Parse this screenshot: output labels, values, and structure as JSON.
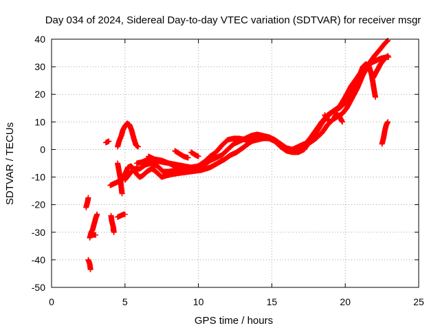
{
  "chart_data": {
    "type": "scatter",
    "title": "Day 034 of 2024, Sidereal Day-to-day VTEC variation (SDTVAR) for receiver msgr",
    "xlabel": "GPS time / hours",
    "ylabel": "SDTVAR / TECUs",
    "xlim": [
      0,
      25
    ],
    "ylim": [
      -50,
      40
    ],
    "xticks": [
      "0",
      "5",
      "10",
      "15",
      "20",
      "25"
    ],
    "yticks": [
      "-50",
      "-40",
      "-30",
      "-20",
      "-10",
      "0",
      "10",
      "20",
      "30",
      "40"
    ],
    "grid": true,
    "marker": "plus",
    "color": "#ff0000",
    "series": [
      {
        "segments": [
          [
            [
              2.35,
              -21
            ],
            [
              2.45,
              -19
            ],
            [
              2.5,
              -17.5
            ]
          ],
          [
            [
              2.5,
              -40
            ],
            [
              2.6,
              -41.5
            ],
            [
              2.65,
              -43.5
            ]
          ],
          [
            [
              2.6,
              -32
            ],
            [
              2.7,
              -30
            ],
            [
              2.8,
              -29
            ],
            [
              2.9,
              -27
            ],
            [
              3.0,
              -25
            ],
            [
              3.1,
              -23.5
            ]
          ],
          [
            [
              2.8,
              -31
            ],
            [
              3.0,
              -31
            ]
          ],
          [
            [
              3.7,
              2.5
            ],
            [
              3.9,
              3
            ]
          ],
          [
            [
              4.0,
              -13
            ],
            [
              4.2,
              -12.5
            ],
            [
              4.4,
              -12
            ],
            [
              4.6,
              -11.5
            ]
          ],
          [
            [
              4.05,
              -24
            ],
            [
              4.1,
              -26
            ],
            [
              4.2,
              -28
            ],
            [
              4.25,
              -30
            ],
            [
              4.2,
              -29
            ]
          ],
          [
            [
              4.5,
              -5
            ],
            [
              4.6,
              -8
            ],
            [
              4.7,
              -11
            ],
            [
              4.75,
              -14
            ],
            [
              4.8,
              -16
            ]
          ],
          [
            [
              4.5,
              -24.5
            ],
            [
              4.7,
              -24
            ],
            [
              4.9,
              -23.5
            ],
            [
              5.0,
              -23.5
            ]
          ],
          [
            [
              4.5,
              1
            ],
            [
              4.6,
              3
            ],
            [
              4.75,
              5
            ],
            [
              4.85,
              7
            ],
            [
              5.0,
              8.5
            ],
            [
              5.15,
              9.5
            ],
            [
              5.3,
              9
            ],
            [
              5.45,
              7
            ],
            [
              5.6,
              4
            ],
            [
              5.75,
              1.5
            ],
            [
              5.9,
              1
            ]
          ],
          [
            [
              4.6,
              -12
            ],
            [
              4.8,
              -11
            ],
            [
              5.0,
              -9
            ],
            [
              5.2,
              -6.5
            ],
            [
              5.4,
              -6
            ],
            [
              5.6,
              -7
            ],
            [
              5.8,
              -9
            ],
            [
              6.0,
              -10
            ],
            [
              6.2,
              -9.5
            ],
            [
              6.5,
              -8
            ],
            [
              6.8,
              -7
            ],
            [
              7.0,
              -7.5
            ],
            [
              7.3,
              -9
            ],
            [
              7.5,
              -10
            ],
            [
              7.8,
              -9.5
            ],
            [
              8.2,
              -9
            ],
            [
              8.8,
              -8.5
            ],
            [
              9.5,
              -8
            ],
            [
              10.2,
              -7.5
            ],
            [
              10.8,
              -6.5
            ],
            [
              11.3,
              -5
            ],
            [
              11.8,
              -3.5
            ],
            [
              12.2,
              -2
            ],
            [
              12.6,
              -1
            ],
            [
              13.0,
              0.5
            ],
            [
              13.5,
              2.5
            ],
            [
              14.0,
              4
            ],
            [
              14.5,
              4.5
            ],
            [
              15.0,
              4
            ],
            [
              15.5,
              2
            ],
            [
              16.0,
              0
            ],
            [
              16.4,
              -1
            ],
            [
              16.8,
              -1
            ],
            [
              17.2,
              0
            ],
            [
              17.6,
              3
            ],
            [
              18.0,
              6
            ],
            [
              18.4,
              9.5
            ],
            [
              18.8,
              12
            ],
            [
              19.2,
              14
            ],
            [
              19.6,
              15
            ],
            [
              20.0,
              17
            ],
            [
              20.3,
              19
            ],
            [
              20.6,
              22
            ],
            [
              20.9,
              26
            ],
            [
              21.2,
              30
            ],
            [
              21.4,
              31
            ],
            [
              21.6,
              30.5
            ],
            [
              21.8,
              27
            ],
            [
              21.95,
              22
            ],
            [
              22.05,
              19
            ]
          ],
          [
            [
              5.0,
              -11
            ],
            [
              5.3,
              -9
            ],
            [
              5.6,
              -7
            ],
            [
              6.0,
              -7
            ],
            [
              6.4,
              -5.5
            ],
            [
              6.8,
              -5
            ],
            [
              7.2,
              -6
            ],
            [
              7.6,
              -8
            ],
            [
              8.0,
              -8
            ],
            [
              8.5,
              -7.5
            ],
            [
              9.0,
              -7
            ],
            [
              9.5,
              -6.5
            ],
            [
              10.0,
              -6
            ],
            [
              10.4,
              -4.5
            ],
            [
              10.8,
              -2.5
            ],
            [
              11.2,
              -1
            ],
            [
              11.6,
              1.5
            ],
            [
              12.0,
              3.5
            ],
            [
              12.4,
              4
            ],
            [
              12.8,
              4
            ],
            [
              13.2,
              3.5
            ],
            [
              13.6,
              3
            ],
            [
              14.0,
              3.5
            ],
            [
              14.4,
              4
            ],
            [
              14.8,
              4
            ],
            [
              15.2,
              3
            ],
            [
              15.6,
              1
            ],
            [
              16.0,
              -0.5
            ],
            [
              16.4,
              -1
            ],
            [
              16.8,
              -0.5
            ],
            [
              17.2,
              1.5
            ],
            [
              17.6,
              4
            ],
            [
              18.0,
              7
            ],
            [
              18.4,
              10
            ],
            [
              18.8,
              12.5
            ],
            [
              19.2,
              14
            ],
            [
              19.6,
              15.5
            ],
            [
              20.0,
              19
            ],
            [
              20.4,
              23
            ],
            [
              20.8,
              26
            ],
            [
              21.2,
              29
            ],
            [
              21.6,
              31
            ],
            [
              22.0,
              32
            ],
            [
              22.4,
              33
            ],
            [
              22.8,
              33.5
            ],
            [
              22.95,
              33.5
            ]
          ],
          [
            [
              5.8,
              -5
            ],
            [
              6.2,
              -4.5
            ],
            [
              6.6,
              -3.5
            ],
            [
              7.0,
              -4
            ],
            [
              7.5,
              -4.5
            ],
            [
              8.0,
              -5
            ],
            [
              8.5,
              -5.5
            ],
            [
              9.0,
              -6
            ],
            [
              9.5,
              -6.5
            ],
            [
              10.0,
              -7
            ],
            [
              10.4,
              -5.5
            ],
            [
              10.8,
              -4
            ],
            [
              11.2,
              -3
            ],
            [
              11.6,
              -2
            ],
            [
              12.0,
              0
            ],
            [
              12.4,
              2
            ],
            [
              12.8,
              3
            ],
            [
              13.2,
              4
            ],
            [
              13.6,
              5
            ],
            [
              14.0,
              5.5
            ],
            [
              14.4,
              5
            ],
            [
              14.8,
              4.5
            ],
            [
              15.2,
              3.5
            ],
            [
              15.6,
              2
            ],
            [
              16.0,
              0.5
            ],
            [
              16.4,
              0
            ],
            [
              16.8,
              1
            ],
            [
              17.2,
              2
            ],
            [
              17.6,
              2.5
            ],
            [
              18.0,
              4
            ],
            [
              18.4,
              6
            ],
            [
              18.8,
              9
            ],
            [
              19.2,
              11
            ],
            [
              19.5,
              12
            ],
            [
              19.8,
              13
            ],
            [
              20.1,
              15
            ],
            [
              20.4,
              18
            ],
            [
              20.8,
              22
            ],
            [
              21.2,
              27
            ],
            [
              21.6,
              31
            ],
            [
              22.0,
              34
            ],
            [
              22.4,
              36.5
            ],
            [
              22.7,
              38.5
            ],
            [
              22.9,
              39.5
            ]
          ],
          [
            [
              6.6,
              -2.5
            ],
            [
              7.0,
              -3.5
            ],
            [
              7.5,
              -4
            ],
            [
              8.0,
              -5
            ],
            [
              8.4,
              -6
            ],
            [
              8.8,
              -6.5
            ]
          ],
          [
            [
              8.4,
              -0.5
            ],
            [
              8.7,
              -1.5
            ],
            [
              9.0,
              -2.5
            ],
            [
              9.3,
              -3
            ]
          ],
          [
            [
              9.5,
              -1
            ],
            [
              9.8,
              -2
            ],
            [
              10.0,
              -2.5
            ]
          ],
          [
            [
              18.6,
              12.5
            ],
            [
              18.8,
              11
            ],
            [
              19.0,
              10
            ],
            [
              19.2,
              11
            ],
            [
              19.4,
              13
            ],
            [
              19.6,
              12
            ],
            [
              19.8,
              10
            ]
          ],
          [
            [
              21.9,
              26
            ],
            [
              22.1,
              28
            ],
            [
              22.4,
              31
            ],
            [
              22.7,
              33
            ],
            [
              22.9,
              34
            ]
          ],
          [
            [
              22.5,
              2
            ],
            [
              22.6,
              4
            ],
            [
              22.7,
              7
            ],
            [
              22.8,
              9
            ],
            [
              22.9,
              10
            ]
          ]
        ]
      }
    ]
  }
}
